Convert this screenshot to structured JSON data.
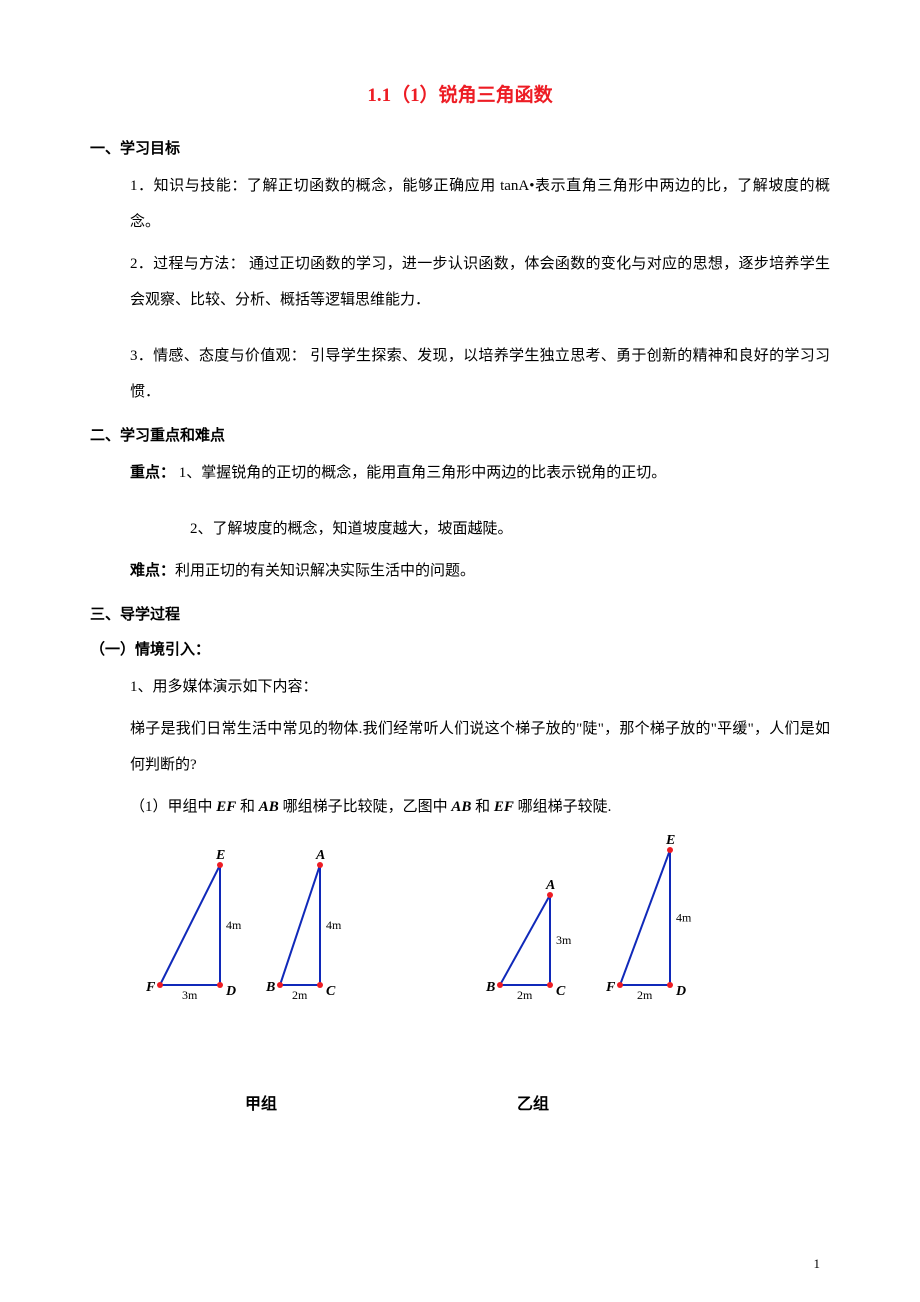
{
  "title": {
    "text": "1.1（1）锐角三角函数",
    "color": "#ed1c24",
    "fontsize": 19,
    "weight": "bold"
  },
  "sections": {
    "s1": {
      "heading": "一、学习目标",
      "item1": "1．知识与技能：了解正切函数的概念，能够正确应用 tanA•表示直角三角形中两边的比，了解坡度的概念。",
      "item2": "2．过程与方法：  通过正切函数的学习，进一步认识函数，体会函数的变化与对应的思想，逐步培养学生会观察、比较、分析、概括等逻辑思维能力．",
      "item3": "3．情感、态度与价值观：  引导学生探索、发现，以培养学生独立思考、勇于创新的精神和良好的学习习惯．"
    },
    "s2": {
      "heading": "二、学习重点和难点",
      "focus_label": "重点：",
      "focus1": " 1、掌握锐角的正切的概念，能用直角三角形中两边的比表示锐角的正切。",
      "focus2": "2、了解坡度的概念，知道坡度越大，坡面越陡。",
      "diff_label": "难点：",
      "diff": "利用正切的有关知识解决实际生活中的问题。"
    },
    "s3": {
      "heading": "三、导学过程"
    },
    "s4": {
      "heading": "（一）情境引入：",
      "p1": "1、用多媒体演示如下内容：",
      "p2": "梯子是我们日常生活中常见的物体.我们经常听人们说这个梯子放的\"陡\"，那个梯子放的\"平缓\"，人们是如何判断的?",
      "p3_pre": "（1）甲组中 ",
      "p3_ef": "EF",
      "p3_mid1": " 和 ",
      "p3_ab": "AB",
      "p3_mid2": " 哪组梯子比较陡，乙图中 ",
      "p3_ab2": "AB",
      "p3_mid3": " 和 ",
      "p3_ef2": "EF",
      "p3_end": " 哪组梯子较陡."
    }
  },
  "figures": {
    "style": {
      "stroke": "#1029b9",
      "stroke_width": 2,
      "dot_fill": "#ed1c24",
      "dot_r": 3,
      "label_color": "#000000",
      "label_font": "Times New Roman",
      "label_fontsize": 14,
      "label_weight": "bold",
      "dim_fontsize": 12,
      "dim_weight": "normal"
    },
    "jia": {
      "tri1": {
        "labels": {
          "top": "E",
          "left": "F",
          "right": "D"
        },
        "dims": {
          "vert": "4m",
          "base": "3m"
        }
      },
      "tri2": {
        "labels": {
          "top": "A",
          "left": "B",
          "right": "C"
        },
        "dims": {
          "vert": "4m",
          "base": "2m"
        }
      }
    },
    "yi": {
      "tri1": {
        "labels": {
          "top": "A",
          "left": "B",
          "right": "C"
        },
        "dims": {
          "vert": "3m",
          "base": "2m"
        }
      },
      "tri2": {
        "labels": {
          "top": "E",
          "left": "F",
          "right": "D"
        },
        "dims": {
          "vert": "4m",
          "base": "2m"
        }
      }
    },
    "group_labels": {
      "jia": "甲组",
      "yi": "乙组"
    }
  },
  "pagenum": "1"
}
